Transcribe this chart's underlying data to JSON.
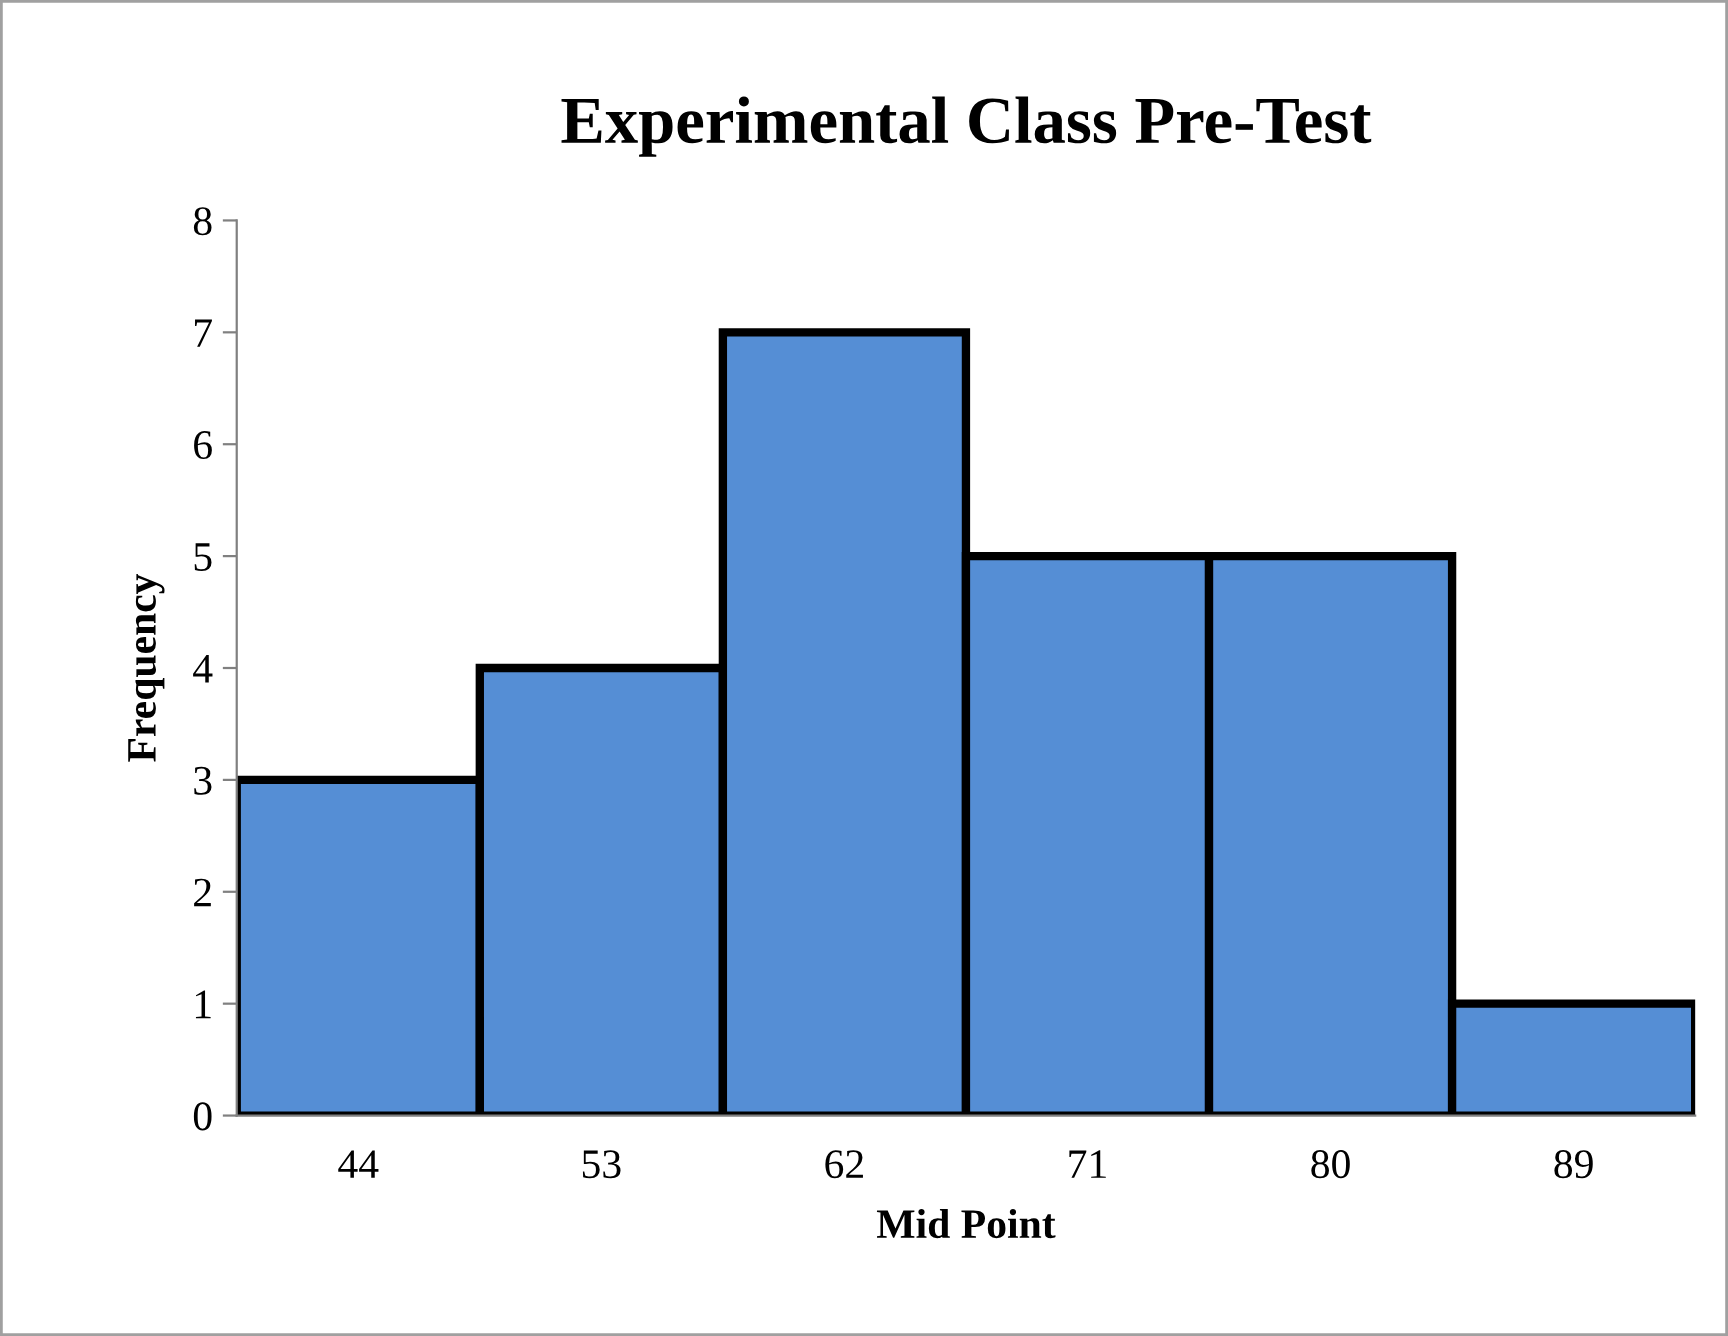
{
  "chart_data": {
    "type": "bar",
    "title": "Experimental Class Pre-Test",
    "xlabel": "Mid Point",
    "ylabel": "Frequency",
    "categories": [
      "44",
      "53",
      "62",
      "71",
      "80",
      "89"
    ],
    "series": [
      {
        "color": "#558ed5",
        "values": [
          3,
          4,
          7,
          5,
          5,
          1
        ]
      }
    ],
    "ylim": [
      0,
      8
    ],
    "yticks": [
      0,
      1,
      2,
      3,
      4,
      5,
      6,
      7,
      8
    ],
    "grid": false,
    "legend": false
  }
}
